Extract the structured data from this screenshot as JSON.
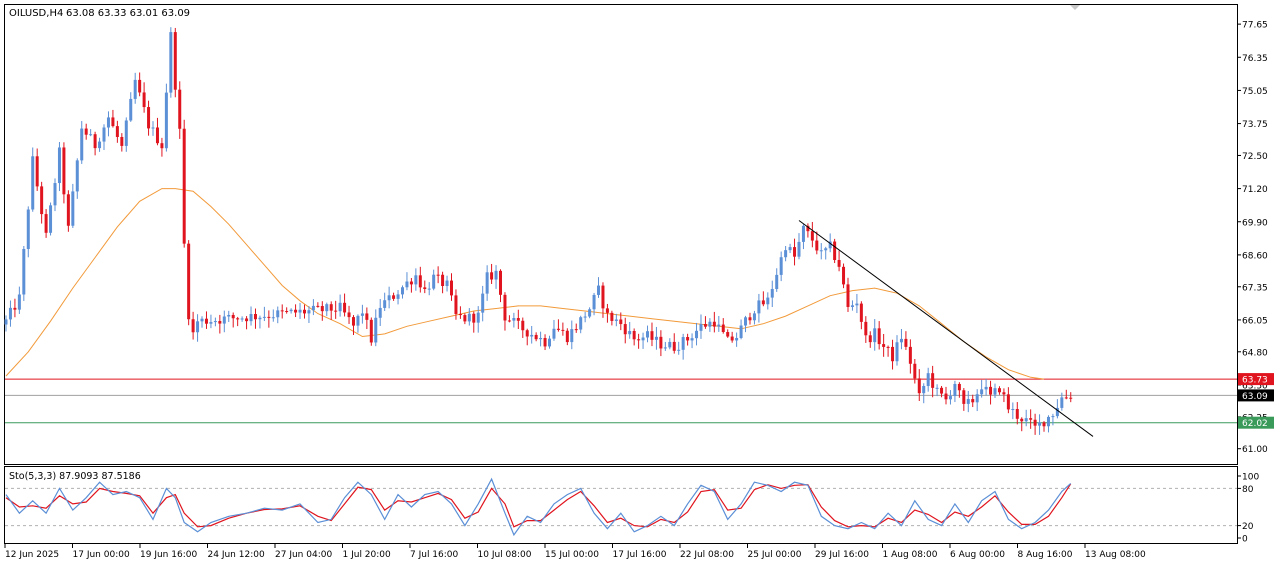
{
  "colors": {
    "bull": "#5b8fd6",
    "bear": "#e0141e",
    "ma": "#f29a3a",
    "resistance": "#e0141e",
    "support": "#3a9a5a",
    "current": "#000000",
    "trendline": "#000000",
    "stoch_main": "#5b8fd6",
    "stoch_signal": "#e0141e",
    "frame": "#000000"
  },
  "chart_data": [
    {
      "type": "candlestick",
      "title": "OILUSD,H4",
      "ohlc_label": "63.08 63.33 63.01 63.09",
      "ylim": [
        60.4,
        78.4
      ],
      "y_ticks": [
        "77.65",
        "76.35",
        "75.05",
        "73.75",
        "72.50",
        "71.20",
        "69.90",
        "68.60",
        "67.35",
        "66.05",
        "64.80",
        "63.50",
        "62.25",
        "61.00"
      ],
      "x_ticks": [
        "12 Jun 2025",
        "17 Jun 00:00",
        "19 Jun 16:00",
        "24 Jun 12:00",
        "27 Jun 04:00",
        "1 Jul 20:00",
        "7 Jul 16:00",
        "10 Jul 08:00",
        "15 Jul 00:00",
        "17 Jul 16:00",
        "22 Jul 08:00",
        "25 Jul 00:00",
        "29 Jul 16:00",
        "1 Aug 08:00",
        "6 Aug 00:00",
        "8 Aug 16:00",
        "13 Aug 08:00"
      ],
      "close_path": [
        [
          0,
          66.0
        ],
        [
          3,
          66.9
        ],
        [
          6,
          72.3
        ],
        [
          9,
          69.3
        ],
        [
          12,
          72.6
        ],
        [
          14,
          69.6
        ],
        [
          17,
          73.6
        ],
        [
          20,
          72.9
        ],
        [
          23,
          74.0
        ],
        [
          26,
          72.8
        ],
        [
          29,
          75.4
        ],
        [
          32,
          73.7
        ],
        [
          35,
          72.9
        ],
        [
          37,
          77.2
        ],
        [
          39,
          73.4
        ],
        [
          40,
          69.0
        ],
        [
          41,
          66.3
        ],
        [
          42,
          65.5
        ],
        [
          43,
          66.0
        ],
        [
          75,
          66.5
        ],
        [
          78,
          65.8
        ],
        [
          80,
          66.4
        ],
        [
          82,
          65.3
        ],
        [
          84,
          66.6
        ],
        [
          87,
          67.0
        ],
        [
          90,
          67.5
        ],
        [
          92,
          67.8
        ],
        [
          94,
          67.2
        ],
        [
          96,
          67.7
        ],
        [
          99,
          67.4
        ],
        [
          101,
          66.2
        ],
        [
          103,
          66.1
        ],
        [
          106,
          66.2
        ],
        [
          108,
          67.7
        ],
        [
          110,
          67.9
        ],
        [
          112,
          66.2
        ],
        [
          115,
          65.8
        ],
        [
          118,
          65.5
        ],
        [
          121,
          65.2
        ],
        [
          123,
          65.8
        ],
        [
          126,
          65.4
        ],
        [
          128,
          65.8
        ],
        [
          131,
          66.5
        ],
        [
          133,
          67.2
        ],
        [
          135,
          66.2
        ],
        [
          138,
          65.9
        ],
        [
          141,
          65.3
        ],
        [
          144,
          65.4
        ],
        [
          147,
          65.1
        ],
        [
          150,
          65.0
        ],
        [
          153,
          65.3
        ],
        [
          156,
          65.8
        ],
        [
          159,
          66.0
        ],
        [
          162,
          65.2
        ],
        [
          164,
          65.4
        ],
        [
          166,
          66.0
        ],
        [
          168,
          66.5
        ],
        [
          171,
          66.8
        ],
        [
          173,
          67.9
        ],
        [
          175,
          69.0
        ],
        [
          177,
          68.5
        ],
        [
          179,
          69.6
        ],
        [
          181,
          69.2
        ],
        [
          183,
          68.6
        ],
        [
          185,
          68.9
        ],
        [
          187,
          68.2
        ],
        [
          189,
          66.5
        ],
        [
          191,
          66.8
        ],
        [
          193,
          65.3
        ],
        [
          195,
          65.5
        ],
        [
          197,
          65.0
        ],
        [
          199,
          64.6
        ],
        [
          201,
          65.4
        ],
        [
          203,
          64.4
        ],
        [
          205,
          63.0
        ],
        [
          207,
          63.9
        ],
        [
          209,
          63.2
        ],
        [
          211,
          62.9
        ],
        [
          213,
          63.6
        ],
        [
          215,
          62.6
        ],
        [
          217,
          62.9
        ],
        [
          219,
          63.5
        ],
        [
          221,
          63.0
        ],
        [
          223,
          63.4
        ],
        [
          225,
          62.6
        ],
        [
          227,
          62.3
        ],
        [
          229,
          62.1
        ],
        [
          231,
          61.8
        ],
        [
          233,
          62.1
        ],
        [
          235,
          62.4
        ],
        [
          237,
          63.0
        ],
        [
          239,
          63.09
        ]
      ],
      "moving_average": [
        [
          0,
          63.85
        ],
        [
          5,
          64.8
        ],
        [
          10,
          66.0
        ],
        [
          15,
          67.3
        ],
        [
          20,
          68.5
        ],
        [
          25,
          69.7
        ],
        [
          30,
          70.7
        ],
        [
          35,
          71.2
        ],
        [
          38,
          71.2
        ],
        [
          42,
          71.1
        ],
        [
          46,
          70.5
        ],
        [
          50,
          69.8
        ],
        [
          54,
          69.0
        ],
        [
          58,
          68.2
        ],
        [
          62,
          67.4
        ],
        [
          66,
          66.8
        ],
        [
          70,
          66.3
        ],
        [
          75,
          65.9
        ],
        [
          80,
          65.4
        ],
        [
          85,
          65.5
        ],
        [
          90,
          65.8
        ],
        [
          95,
          66.0
        ],
        [
          100,
          66.2
        ],
        [
          105,
          66.4
        ],
        [
          110,
          66.5
        ],
        [
          115,
          66.6
        ],
        [
          120,
          66.6
        ],
        [
          125,
          66.5
        ],
        [
          130,
          66.4
        ],
        [
          135,
          66.3
        ],
        [
          140,
          66.2
        ],
        [
          145,
          66.1
        ],
        [
          150,
          66.0
        ],
        [
          155,
          65.9
        ],
        [
          160,
          65.8
        ],
        [
          165,
          65.7
        ],
        [
          170,
          65.9
        ],
        [
          175,
          66.2
        ],
        [
          180,
          66.6
        ],
        [
          185,
          67.0
        ],
        [
          190,
          67.2
        ],
        [
          195,
          67.3
        ],
        [
          200,
          67.1
        ],
        [
          205,
          66.6
        ],
        [
          210,
          65.9
        ],
        [
          215,
          65.2
        ],
        [
          220,
          64.6
        ],
        [
          225,
          64.1
        ],
        [
          230,
          63.8
        ],
        [
          233,
          63.73
        ]
      ],
      "trendline": [
        [
          178,
          69.95
        ],
        [
          244,
          61.48
        ]
      ],
      "horizontal_levels": [
        {
          "value": 63.73,
          "label": "63.73",
          "role": "resistance"
        },
        {
          "value": 63.09,
          "label": "63.09",
          "role": "current"
        },
        {
          "value": 62.02,
          "label": "62.02",
          "role": "support"
        }
      ]
    },
    {
      "type": "line",
      "title": "Sto(5,3,3) 87.9093 87.5186",
      "ylim": [
        0,
        100
      ],
      "y_ticks": [
        "100",
        "80",
        "20",
        "0"
      ],
      "reference_levels": [
        80,
        20
      ],
      "series": [
        {
          "name": "main",
          "points": [
            [
              0,
              70
            ],
            [
              3,
              40
            ],
            [
              6,
              60
            ],
            [
              9,
              40
            ],
            [
              12,
              80
            ],
            [
              15,
              45
            ],
            [
              18,
              65
            ],
            [
              21,
              90
            ],
            [
              24,
              70
            ],
            [
              27,
              75
            ],
            [
              30,
              65
            ],
            [
              33,
              30
            ],
            [
              36,
              80
            ],
            [
              38,
              65
            ],
            [
              40,
              25
            ],
            [
              43,
              10
            ],
            [
              46,
              25
            ],
            [
              50,
              35
            ],
            [
              54,
              40
            ],
            [
              58,
              48
            ],
            [
              62,
              45
            ],
            [
              66,
              55
            ],
            [
              70,
              25
            ],
            [
              73,
              30
            ],
            [
              76,
              65
            ],
            [
              79,
              90
            ],
            [
              82,
              70
            ],
            [
              85,
              30
            ],
            [
              88,
              70
            ],
            [
              91,
              50
            ],
            [
              94,
              70
            ],
            [
              97,
              75
            ],
            [
              100,
              55
            ],
            [
              103,
              20
            ],
            [
              106,
              55
            ],
            [
              109,
              95
            ],
            [
              112,
              40
            ],
            [
              114,
              5
            ],
            [
              117,
              35
            ],
            [
              120,
              25
            ],
            [
              123,
              55
            ],
            [
              126,
              70
            ],
            [
              129,
              80
            ],
            [
              132,
              40
            ],
            [
              135,
              15
            ],
            [
              138,
              40
            ],
            [
              141,
              10
            ],
            [
              144,
              20
            ],
            [
              147,
              35
            ],
            [
              150,
              20
            ],
            [
              153,
              55
            ],
            [
              156,
              85
            ],
            [
              159,
              75
            ],
            [
              162,
              30
            ],
            [
              165,
              55
            ],
            [
              168,
              90
            ],
            [
              171,
              85
            ],
            [
              174,
              75
            ],
            [
              177,
              90
            ],
            [
              180,
              85
            ],
            [
              183,
              35
            ],
            [
              186,
              20
            ],
            [
              189,
              15
            ],
            [
              192,
              25
            ],
            [
              195,
              15
            ],
            [
              198,
              40
            ],
            [
              201,
              20
            ],
            [
              204,
              60
            ],
            [
              207,
              30
            ],
            [
              210,
              20
            ],
            [
              213,
              55
            ],
            [
              216,
              25
            ],
            [
              219,
              60
            ],
            [
              222,
              75
            ],
            [
              225,
              30
            ],
            [
              228,
              15
            ],
            [
              231,
              25
            ],
            [
              234,
              45
            ],
            [
              237,
              75
            ],
            [
              239,
              88
            ]
          ]
        },
        {
          "name": "signal",
          "points": [
            [
              0,
              65
            ],
            [
              3,
              50
            ],
            [
              6,
              52
            ],
            [
              9,
              48
            ],
            [
              12,
              68
            ],
            [
              15,
              55
            ],
            [
              18,
              58
            ],
            [
              21,
              80
            ],
            [
              24,
              75
            ],
            [
              27,
              72
            ],
            [
              30,
              68
            ],
            [
              33,
              40
            ],
            [
              36,
              65
            ],
            [
              38,
              70
            ],
            [
              40,
              40
            ],
            [
              43,
              18
            ],
            [
              46,
              20
            ],
            [
              50,
              32
            ],
            [
              54,
              40
            ],
            [
              58,
              46
            ],
            [
              62,
              47
            ],
            [
              66,
              52
            ],
            [
              70,
              35
            ],
            [
              73,
              28
            ],
            [
              76,
              55
            ],
            [
              79,
              82
            ],
            [
              82,
              78
            ],
            [
              85,
              45
            ],
            [
              88,
              60
            ],
            [
              91,
              58
            ],
            [
              94,
              65
            ],
            [
              97,
              72
            ],
            [
              100,
              62
            ],
            [
              103,
              32
            ],
            [
              106,
              42
            ],
            [
              109,
              80
            ],
            [
              112,
              55
            ],
            [
              114,
              18
            ],
            [
              117,
              28
            ],
            [
              120,
              28
            ],
            [
              123,
              45
            ],
            [
              126,
              62
            ],
            [
              129,
              75
            ],
            [
              132,
              52
            ],
            [
              135,
              25
            ],
            [
              138,
              32
            ],
            [
              141,
              20
            ],
            [
              144,
              18
            ],
            [
              147,
              30
            ],
            [
              150,
              25
            ],
            [
              153,
              42
            ],
            [
              156,
              75
            ],
            [
              159,
              78
            ],
            [
              162,
              45
            ],
            [
              165,
              48
            ],
            [
              168,
              78
            ],
            [
              171,
              86
            ],
            [
              174,
              80
            ],
            [
              177,
              85
            ],
            [
              180,
              86
            ],
            [
              183,
              50
            ],
            [
              186,
              28
            ],
            [
              189,
              18
            ],
            [
              192,
              20
            ],
            [
              195,
              18
            ],
            [
              198,
              32
            ],
            [
              201,
              25
            ],
            [
              204,
              45
            ],
            [
              207,
              38
            ],
            [
              210,
              25
            ],
            [
              213,
              42
            ],
            [
              216,
              35
            ],
            [
              219,
              50
            ],
            [
              222,
              68
            ],
            [
              225,
              42
            ],
            [
              228,
              22
            ],
            [
              231,
              22
            ],
            [
              234,
              35
            ],
            [
              237,
              65
            ],
            [
              239,
              87.5
            ]
          ]
        }
      ]
    }
  ]
}
